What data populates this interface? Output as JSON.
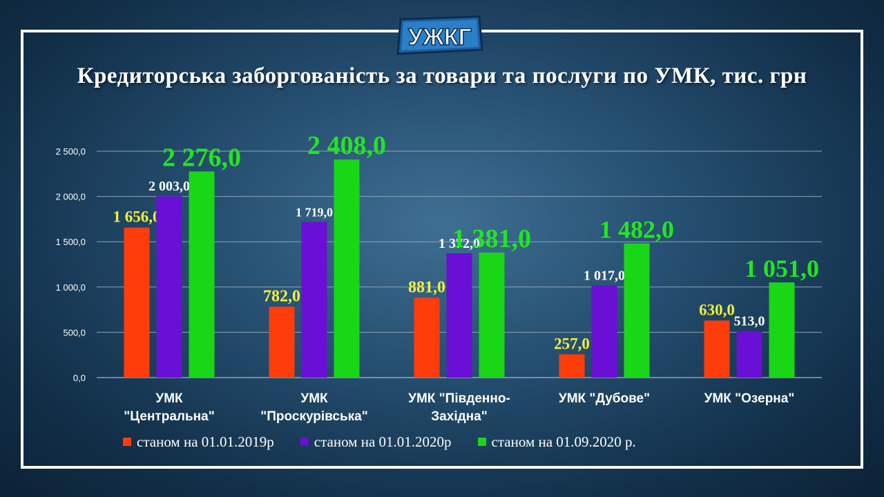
{
  "logo_text": "УЖКГ",
  "chart_data": {
    "type": "bar",
    "title": "Кредиторська заборгованість за товари та послуги по УМК, тис. грн",
    "categories": [
      [
        "УМК",
        "\"Центральна\""
      ],
      [
        "УМК",
        "\"Проскурівська\""
      ],
      [
        "УМК \"Південно-",
        "Західна\""
      ],
      [
        "УМК \"Дубове\""
      ],
      [
        "УМК \"Озерна\""
      ]
    ],
    "series": [
      {
        "name": "станом на 01.01.2019р",
        "color": "#ff3d0a",
        "label_color": "#f5f03a",
        "values": [
          1656,
          782,
          881,
          257,
          630
        ],
        "labels": [
          "1 656,0",
          "782,0",
          "881,0",
          "257,0",
          "630,0"
        ]
      },
      {
        "name": "станом на 01.01.2020р",
        "color": "#6a0fd6",
        "label_color": "#ffffff",
        "values": [
          2003,
          1719,
          1372,
          1017,
          513
        ],
        "labels": [
          "2 003,0",
          "1 719,0",
          "1 372,0",
          "1 017,0",
          "513,0"
        ]
      },
      {
        "name": "станом на 01.09.2020 р.",
        "color": "#19d616",
        "label_color": "#22e61e",
        "values": [
          2276,
          2408,
          1381,
          1482,
          1051
        ],
        "labels": [
          "2 276,0",
          "2 408,0",
          "1 381,0",
          "1 482,0",
          "1 051,0"
        ]
      }
    ],
    "yticks": [
      "0,0",
      "500,0",
      "1 000,0",
      "1 500,0",
      "2 000,0",
      "2 500,0"
    ],
    "ylim": [
      0,
      2500
    ],
    "grid": true,
    "legend": "bottom"
  }
}
